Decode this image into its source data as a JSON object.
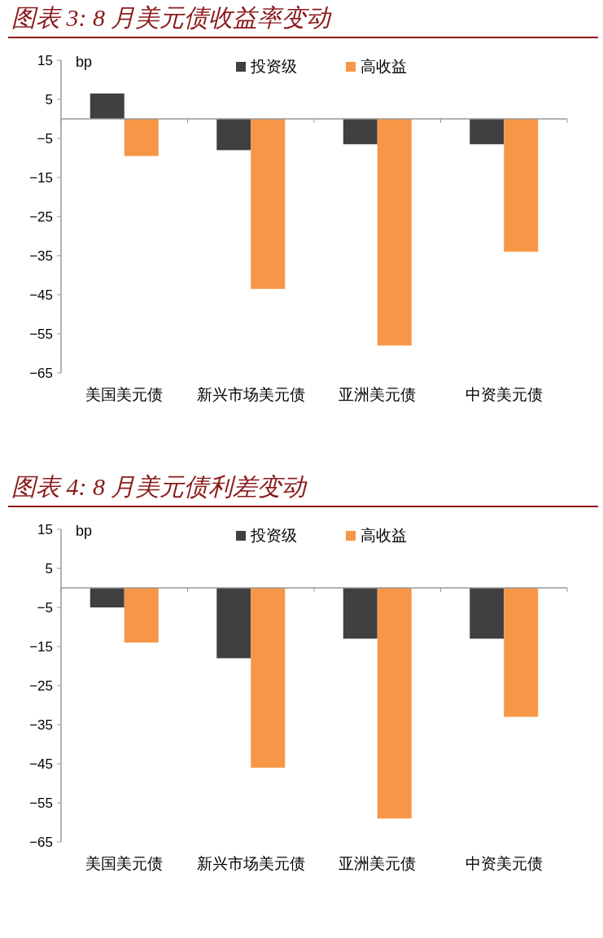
{
  "chart_data": [
    {
      "type": "bar",
      "title": "图表 3: 8 月美元债收益率变动",
      "ylabel": "bp",
      "categories": [
        "美国美元债",
        "新兴市场美元债",
        "亚洲美元债",
        "中资美元债"
      ],
      "series": [
        {
          "name": "投资级",
          "color": "#404040",
          "values": [
            6.5,
            -8,
            -6.5,
            -6.5
          ]
        },
        {
          "name": "高收益",
          "color": "#f79646",
          "values": [
            -9.5,
            -43.5,
            -58,
            -34
          ]
        }
      ],
      "ylim": [
        -65,
        15
      ],
      "yticks": [
        15,
        5,
        -5,
        -15,
        -25,
        -35,
        -45,
        -55,
        -65
      ],
      "legend": "top",
      "grid": false
    },
    {
      "type": "bar",
      "title": "图表 4: 8 月美元债利差变动",
      "ylabel": "bp",
      "categories": [
        "美国美元债",
        "新兴市场美元债",
        "亚洲美元债",
        "中资美元债"
      ],
      "series": [
        {
          "name": "投资级",
          "color": "#404040",
          "values": [
            -5,
            -18,
            -13,
            -13
          ]
        },
        {
          "name": "高收益",
          "color": "#f79646",
          "values": [
            -14,
            -46,
            -59,
            -33
          ]
        }
      ],
      "ylim": [
        -65,
        15
      ],
      "yticks": [
        15,
        5,
        -5,
        -15,
        -25,
        -35,
        -45,
        -55,
        -65
      ],
      "legend": "top",
      "grid": false
    }
  ]
}
